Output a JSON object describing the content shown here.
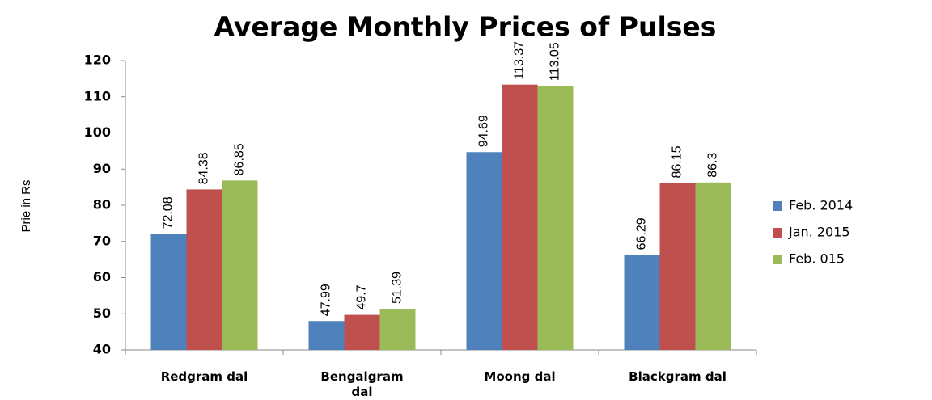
{
  "chart_data": {
    "type": "bar",
    "title": "Average Monthly Prices of Pulses",
    "y_label": "Prie in Rs",
    "categories": [
      "Redgram dal",
      "Bengalgram dal",
      "Moong dal",
      "Blackgram dal"
    ],
    "series": [
      {
        "name": "Feb. 2014",
        "color": "#4f81bd",
        "values": [
          72.08,
          47.99,
          94.69,
          66.29
        ]
      },
      {
        "name": "Jan. 2015",
        "color": "#c0504d",
        "values": [
          84.38,
          49.7,
          113.37,
          86.15
        ]
      },
      {
        "name": "Feb. 015",
        "color": "#9bbb59",
        "values": [
          86.85,
          51.39,
          113.05,
          86.3
        ]
      }
    ],
    "ylim": [
      40,
      120
    ],
    "yticks": [
      40,
      50,
      60,
      70,
      80,
      90,
      100,
      110,
      120
    ],
    "grid": false,
    "legend": "right"
  }
}
